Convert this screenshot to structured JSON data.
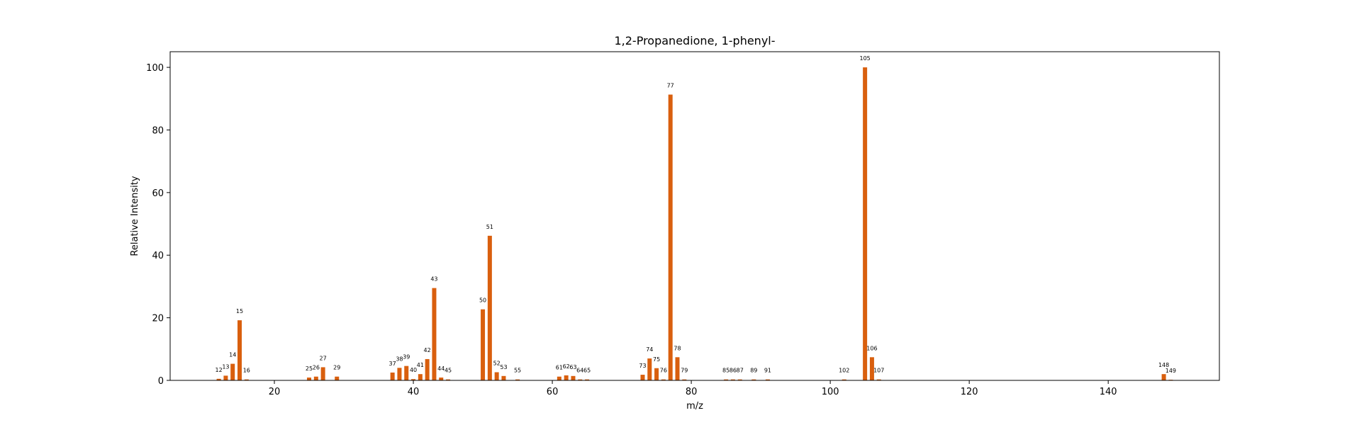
{
  "chart_data": {
    "type": "bar",
    "title": "1,2-Propanedione, 1-phenyl-",
    "xlabel": "m/z",
    "ylabel": "Relative Intensity",
    "xlim": [
      5,
      156
    ],
    "ylim": [
      0,
      105
    ],
    "xticks": [
      20,
      40,
      60,
      80,
      100,
      120,
      140
    ],
    "yticks": [
      0,
      20,
      40,
      60,
      80,
      100
    ],
    "grid": false,
    "bar_color": "#d95f0e",
    "x": [
      12,
      13,
      14,
      15,
      16,
      25,
      26,
      27,
      29,
      37,
      38,
      39,
      40,
      41,
      42,
      43,
      44,
      45,
      50,
      51,
      52,
      53,
      55,
      61,
      62,
      63,
      64,
      65,
      73,
      74,
      75,
      76,
      77,
      78,
      79,
      85,
      86,
      87,
      89,
      91,
      102,
      105,
      106,
      107,
      148,
      149
    ],
    "values": [
      0.5,
      1.5,
      5.3,
      19.2,
      0.3,
      0.9,
      1.2,
      4.2,
      1.2,
      2.5,
      4.0,
      4.6,
      0.4,
      2.0,
      6.8,
      29.5,
      0.9,
      0.3,
      22.7,
      46.2,
      2.6,
      1.4,
      0.3,
      1.2,
      1.6,
      1.4,
      0.3,
      0.3,
      1.8,
      7.0,
      3.9,
      0.3,
      91.3,
      7.4,
      0.3,
      0.3,
      0.3,
      0.3,
      0.3,
      0.3,
      0.3,
      100.0,
      7.4,
      0.3,
      2.0,
      0.2
    ],
    "labels": [
      "12",
      "13",
      "14",
      "15",
      "16",
      "25",
      "26",
      "27",
      "29",
      "37",
      "38",
      "39",
      "40",
      "41",
      "42",
      "43",
      "44",
      "45",
      "50",
      "51",
      "52",
      "53",
      "55",
      "61",
      "62",
      "63",
      "64",
      "65",
      "73",
      "74",
      "75",
      "76",
      "77",
      "78",
      "79",
      "85",
      "86",
      "87",
      "89",
      "91",
      "102",
      "105",
      "106",
      "107",
      "148",
      "149"
    ]
  }
}
